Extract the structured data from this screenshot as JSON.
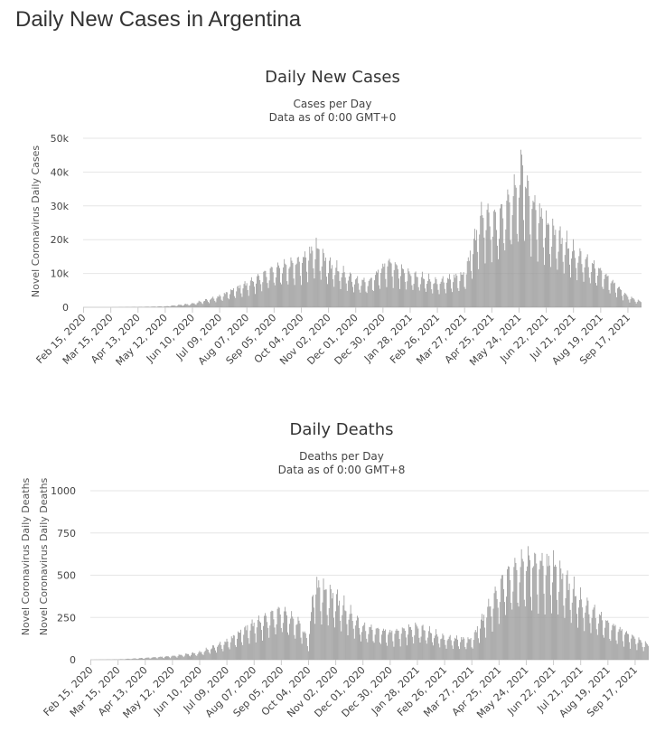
{
  "page_title": "Daily New Cases in Argentina",
  "chart_data": [
    {
      "type": "bar",
      "title": "Daily New Cases",
      "subtitle_lines": [
        "Cases per Day",
        "Data as of 0:00 GMT+0"
      ],
      "ylabel": "Novel Coronavirus Daily Cases",
      "xlabel": "",
      "ylim": [
        0,
        50000
      ],
      "y_ticks": [
        0,
        10000,
        20000,
        30000,
        40000,
        50000
      ],
      "y_tick_labels": [
        "0",
        "10k",
        "20k",
        "30k",
        "40k",
        "50k"
      ],
      "x_tick_labels": [
        "Feb 15, 2020",
        "Mar 15, 2020",
        "Apr 13, 2020",
        "May 12, 2020",
        "Jun 10, 2020",
        "Jul 09, 2020",
        "Aug 07, 2020",
        "Sep 05, 2020",
        "Oct 04, 2020",
        "Nov 02, 2020",
        "Dec 01, 2020",
        "Dec 30, 2020",
        "Jan 28, 2021",
        "Feb 26, 2021",
        "Mar 27, 2021",
        "Apr 25, 2021",
        "May 24, 2021",
        "Jun 22, 2021",
        "Jul 21, 2021",
        "Aug 19, 2021",
        "Sep 17, 2021"
      ],
      "grid": true,
      "legend": "none",
      "color": "#999999",
      "x_start": "2020-02-15",
      "x_end": "2021-10-01",
      "series": [
        {
          "values": [
            {
              "date": "2020-02-15",
              "value": 0
            },
            {
              "date": "2020-03-15",
              "value": 10
            },
            {
              "date": "2020-04-13",
              "value": 100
            },
            {
              "date": "2020-05-12",
              "value": 250
            },
            {
              "date": "2020-06-10",
              "value": 1000
            },
            {
              "date": "2020-07-09",
              "value": 3000
            },
            {
              "date": "2020-08-07",
              "value": 6500
            },
            {
              "date": "2020-09-05",
              "value": 10500
            },
            {
              "date": "2020-10-04",
              "value": 13000
            },
            {
              "date": "2020-10-20",
              "value": 16500
            },
            {
              "date": "2020-11-02",
              "value": 12000
            },
            {
              "date": "2020-12-01",
              "value": 7500
            },
            {
              "date": "2020-12-15",
              "value": 7000
            },
            {
              "date": "2021-01-05",
              "value": 12500
            },
            {
              "date": "2021-01-28",
              "value": 9000
            },
            {
              "date": "2021-02-26",
              "value": 7000
            },
            {
              "date": "2021-03-27",
              "value": 9000
            },
            {
              "date": "2021-04-15",
              "value": 26000
            },
            {
              "date": "2021-05-01",
              "value": 24000
            },
            {
              "date": "2021-05-24",
              "value": 34000
            },
            {
              "date": "2021-05-27",
              "value": 40000
            },
            {
              "date": "2021-06-05",
              "value": 30000
            },
            {
              "date": "2021-06-22",
              "value": 23000
            },
            {
              "date": "2021-07-21",
              "value": 15500
            },
            {
              "date": "2021-08-19",
              "value": 10000
            },
            {
              "date": "2021-09-17",
              "value": 3000
            },
            {
              "date": "2021-10-01",
              "value": 1500
            }
          ]
        }
      ]
    },
    {
      "type": "bar",
      "title": "Daily Deaths",
      "subtitle_lines": [
        "Deaths per Day",
        "Data as of 0:00 GMT+8"
      ],
      "ylabel": "Novel Coronavirus Daily Deaths",
      "ylabel_repeat": "Novel Coronavirus Daily Deaths",
      "xlabel": "",
      "ylim": [
        0,
        1000
      ],
      "y_ticks": [
        0,
        250,
        500,
        750,
        1000
      ],
      "y_tick_labels": [
        "0",
        "250",
        "500",
        "750",
        "1000"
      ],
      "x_tick_labels": [
        "Feb 15, 2020",
        "Mar 15, 2020",
        "Apr 13, 2020",
        "May 12, 2020",
        "Jun 10, 2020",
        "Jul 09, 2020",
        "Aug 07, 2020",
        "Sep 05, 2020",
        "Oct 04, 2020",
        "Nov 02, 2020",
        "Dec 01, 2020",
        "Dec 30, 2020",
        "Jan 28, 2021",
        "Feb 26, 2021",
        "Mar 27, 2021",
        "Apr 25, 2021",
        "May 24, 2021",
        "Jun 22, 2021",
        "Jul 21, 2021",
        "Aug 19, 2021",
        "Sep 17, 2021"
      ],
      "grid": true,
      "legend": "none",
      "color": "#999999",
      "x_start": "2020-02-15",
      "x_end": "2021-10-01",
      "series": [
        {
          "values": [
            {
              "date": "2020-02-15",
              "value": 0
            },
            {
              "date": "2020-03-15",
              "value": 2
            },
            {
              "date": "2020-04-13",
              "value": 10
            },
            {
              "date": "2020-05-12",
              "value": 20
            },
            {
              "date": "2020-06-10",
              "value": 40
            },
            {
              "date": "2020-07-09",
              "value": 100
            },
            {
              "date": "2020-08-07",
              "value": 200
            },
            {
              "date": "2020-09-05",
              "value": 270
            },
            {
              "date": "2020-09-25",
              "value": 200
            },
            {
              "date": "2020-10-04",
              "value": 100
            },
            {
              "date": "2020-10-10",
              "value": 420
            },
            {
              "date": "2020-11-02",
              "value": 340
            },
            {
              "date": "2020-12-01",
              "value": 180
            },
            {
              "date": "2020-12-30",
              "value": 150
            },
            {
              "date": "2021-01-28",
              "value": 180
            },
            {
              "date": "2021-02-26",
              "value": 120
            },
            {
              "date": "2021-03-27",
              "value": 110
            },
            {
              "date": "2021-04-15",
              "value": 300
            },
            {
              "date": "2021-05-01",
              "value": 450
            },
            {
              "date": "2021-05-24",
              "value": 550
            },
            {
              "date": "2021-06-22",
              "value": 520
            },
            {
              "date": "2021-07-21",
              "value": 330
            },
            {
              "date": "2021-08-19",
              "value": 200
            },
            {
              "date": "2021-09-17",
              "value": 120
            },
            {
              "date": "2021-10-01",
              "value": 80
            }
          ]
        }
      ]
    }
  ]
}
